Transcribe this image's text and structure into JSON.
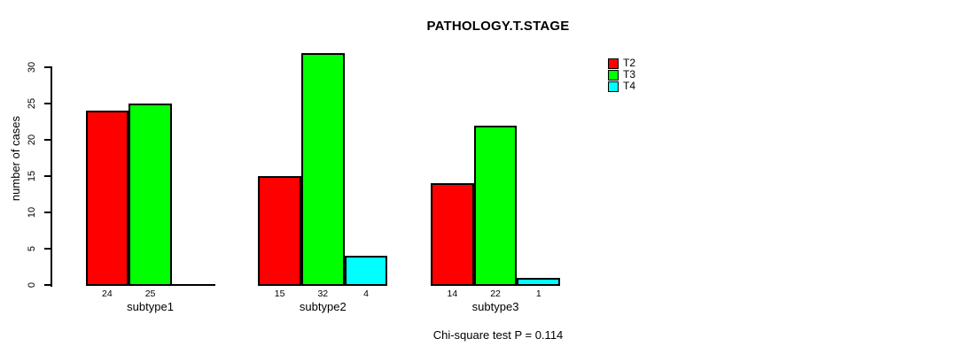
{
  "chart_data": {
    "type": "bar",
    "title": "PATHOLOGY.T.STAGE",
    "ylabel": "number of cases",
    "xlabel": "",
    "categories": [
      "subtype1",
      "subtype2",
      "subtype3"
    ],
    "series": [
      {
        "name": "T2",
        "color": "#ff0000",
        "values": [
          24,
          15,
          14
        ]
      },
      {
        "name": "T3",
        "color": "#00ff00",
        "values": [
          25,
          32,
          22
        ]
      },
      {
        "name": "T4",
        "color": "#00ffff",
        "values": [
          0,
          4,
          1
        ]
      }
    ],
    "bar_value_labels": [
      [
        "24",
        "15",
        "14"
      ],
      [
        "25",
        "32",
        "22"
      ],
      [
        "",
        "4",
        "1"
      ]
    ],
    "ylim": [
      0,
      30
    ],
    "yticks": [
      0,
      5,
      10,
      15,
      20,
      25,
      30
    ],
    "grid": false,
    "legend_position": "right-of-plot",
    "annotation": "Chi-square test P = 0.114"
  }
}
